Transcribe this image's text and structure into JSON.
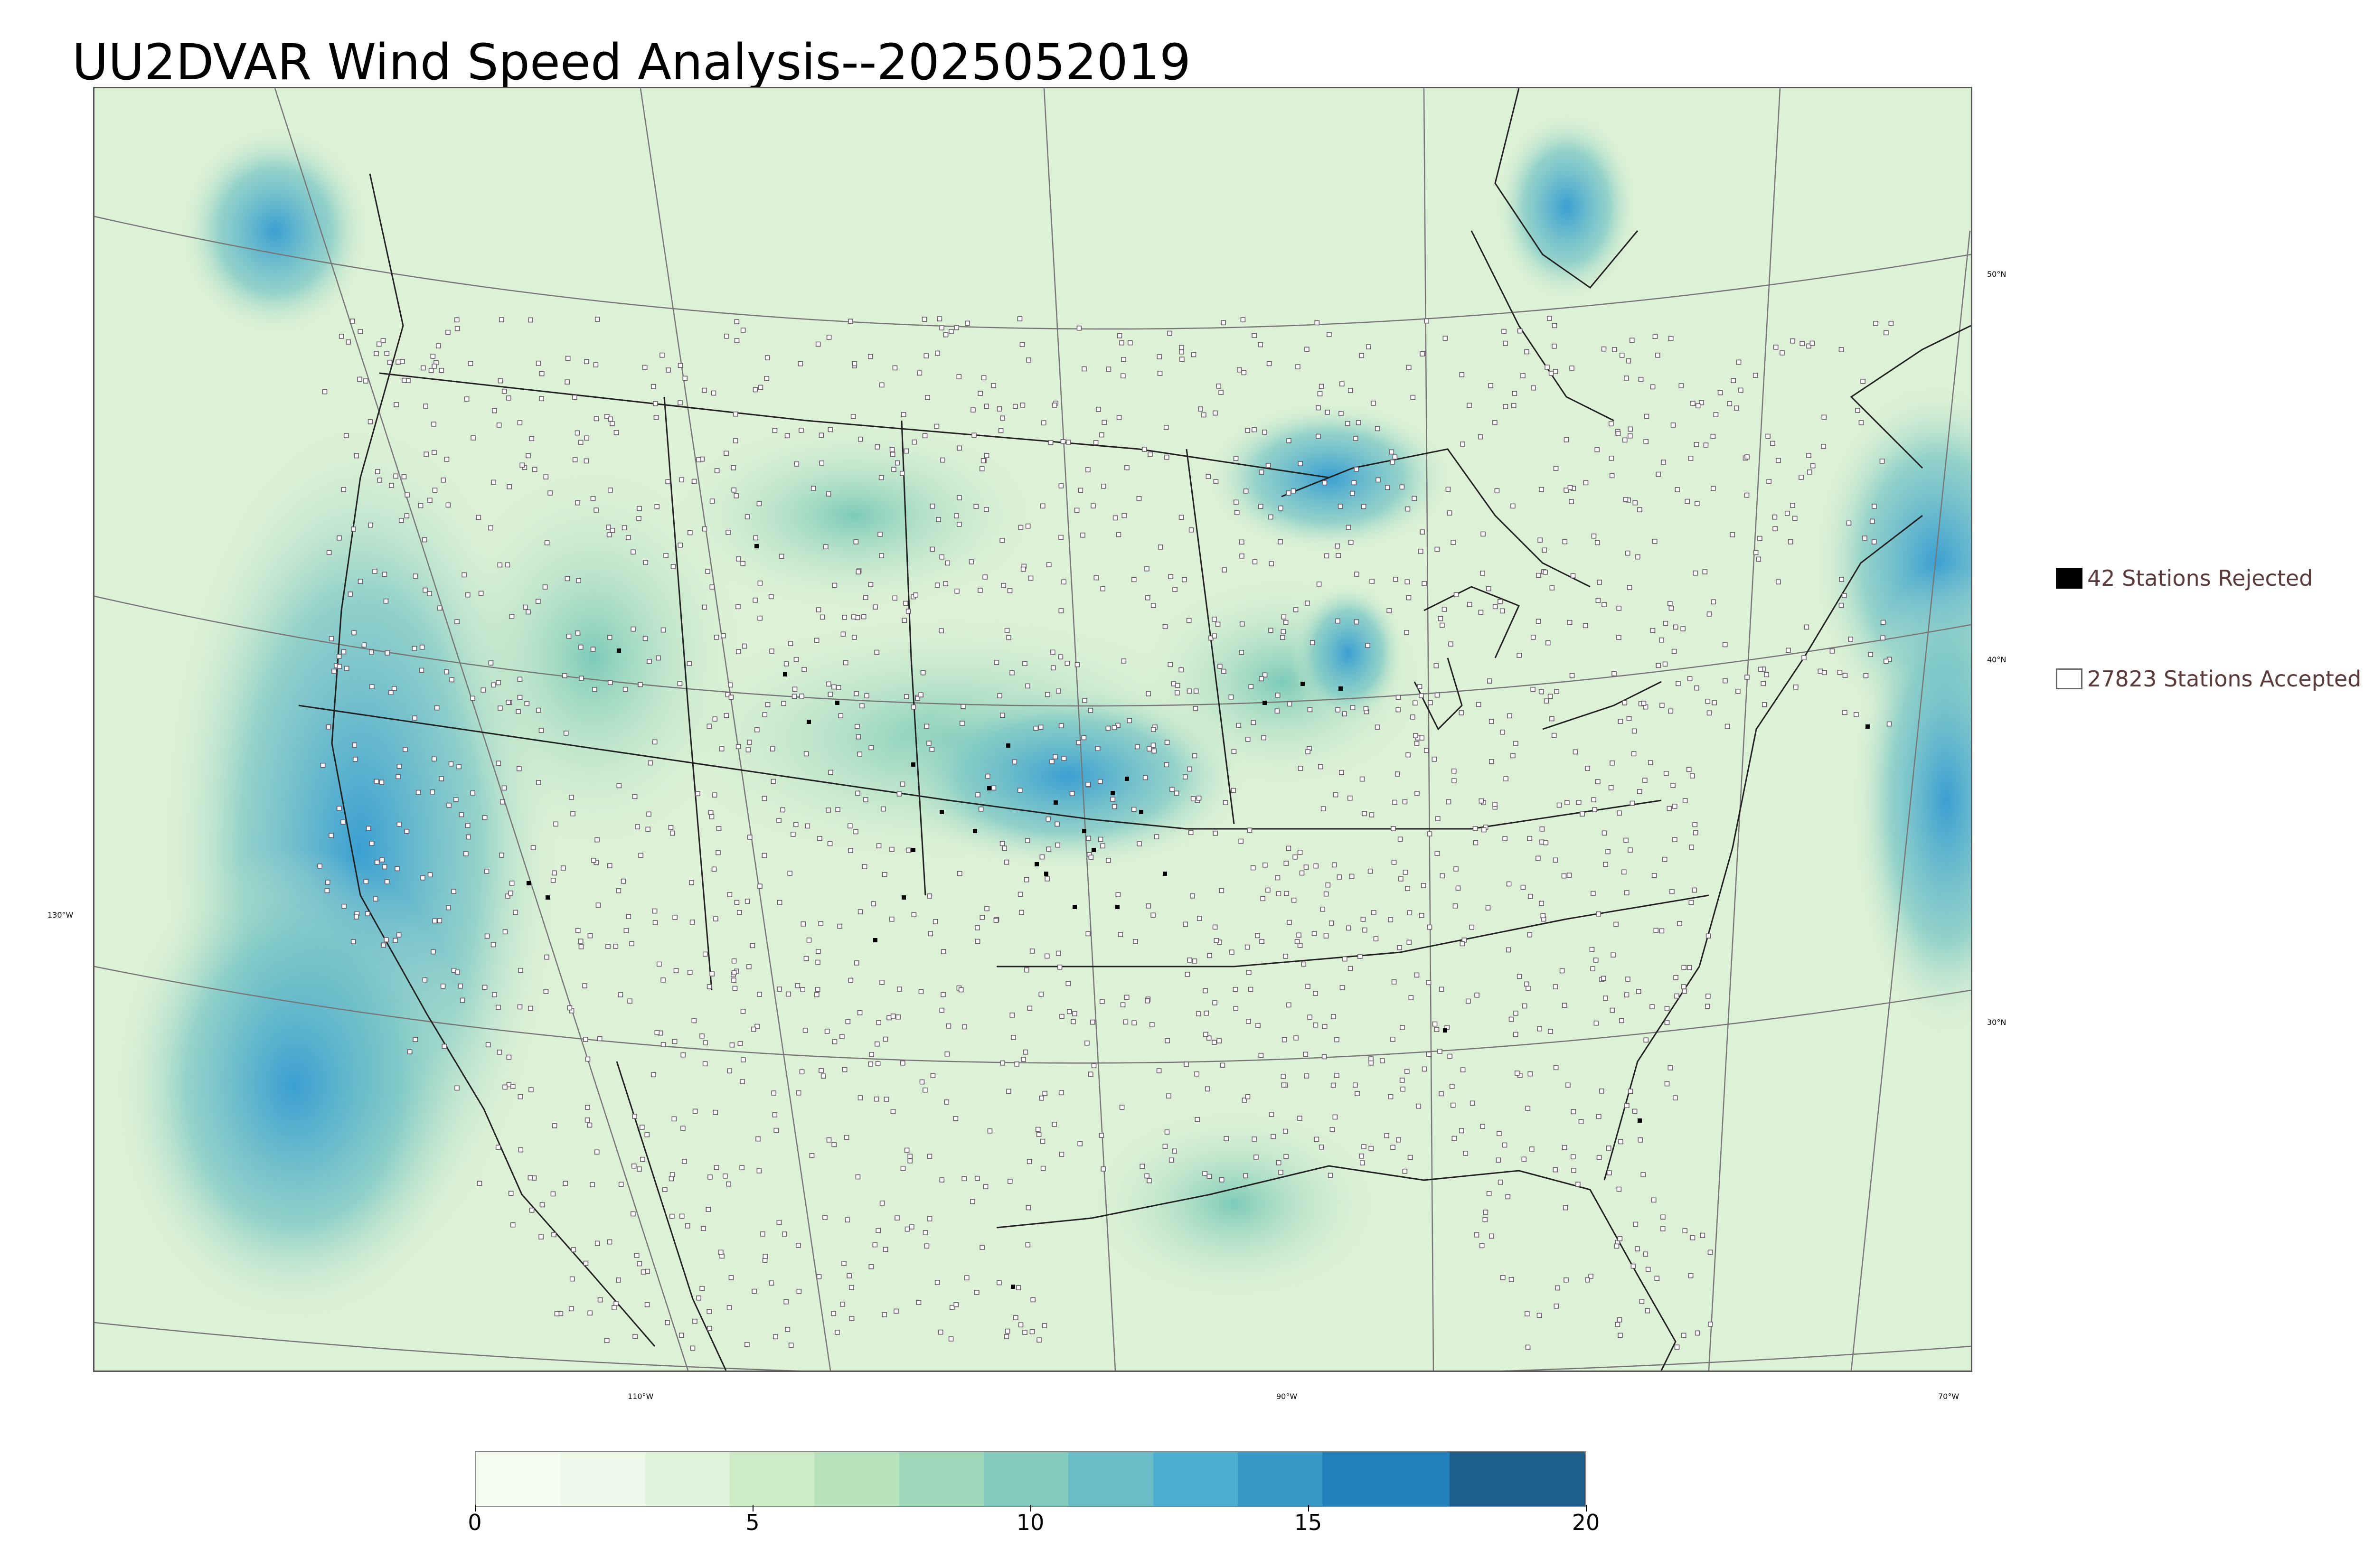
{
  "title": "UU2DVAR Wind Speed Analysis--2025052019",
  "legend": {
    "rejected": "42 Stations Rejected",
    "accepted": "27823 Stations Accepted"
  },
  "latitude_labels": [
    "50°N",
    "40°N",
    "30°N"
  ],
  "longitude_labels": [
    "130°W",
    "110°W",
    "90°W",
    "70°W"
  ],
  "colorbar": {
    "ticks": [
      "0",
      "5",
      "10",
      "15",
      "20"
    ],
    "colors": [
      "#f7fcf0",
      "#eef8e8",
      "#e0f3db",
      "#cdebc5",
      "#b7e2bb",
      "#9fd8b8",
      "#83cbbd",
      "#68bdc7",
      "#4eb0d1",
      "#3999c6",
      "#2281bb",
      "#1d5f8a"
    ]
  },
  "colors": {
    "land": "#e4f4de",
    "ocean_calm": "#d6eecd",
    "strong_wind": "#4aa8d6",
    "station_accepted": "#ffffff",
    "station_rejected": "#000000"
  }
}
